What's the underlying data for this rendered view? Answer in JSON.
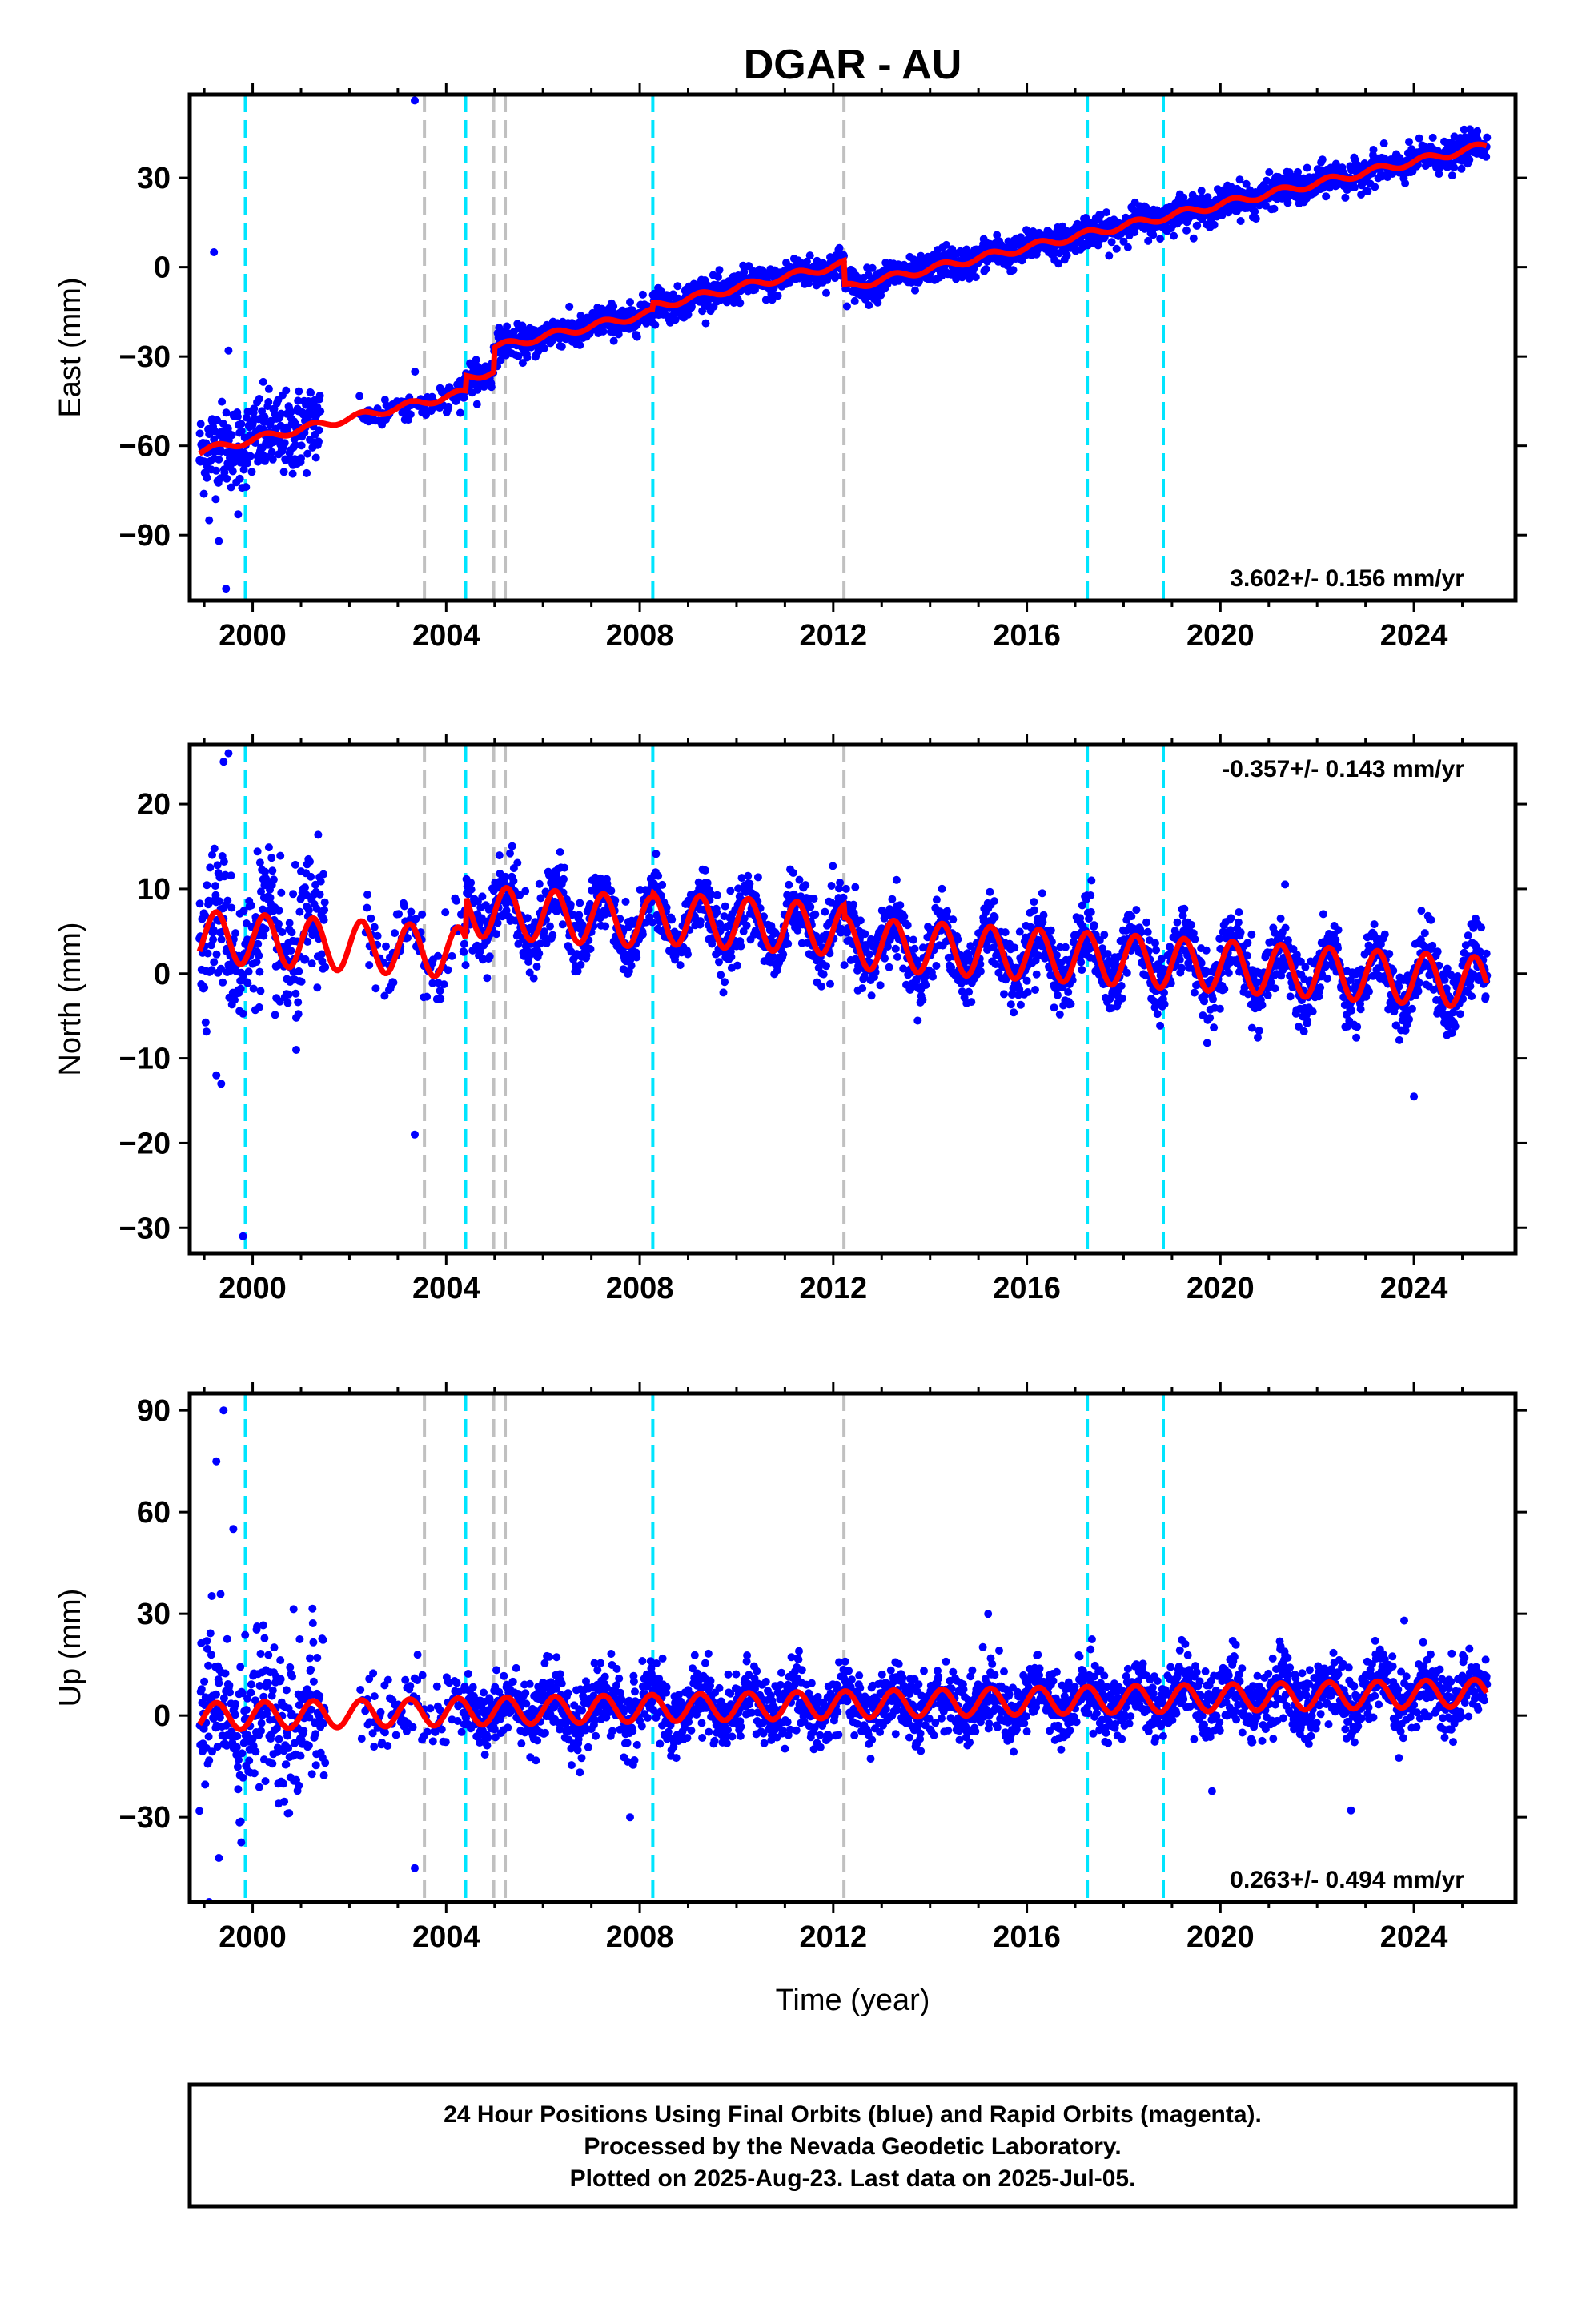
{
  "chart_data": {
    "type": "scatter",
    "title": "DGAR - AU",
    "xlabel": "Time (year)",
    "xlim": [
      1998.7,
      2026.1
    ],
    "xticks": [
      2000,
      2004,
      2008,
      2012,
      2016,
      2020,
      2024
    ],
    "xtick_labels": [
      "2000",
      "2004",
      "2008",
      "2012",
      "2016",
      "2020",
      "2024"
    ],
    "data_range": [
      1998.9,
      2025.51
    ],
    "colors": {
      "points": "#0000ff",
      "model": "#ff0000",
      "equipment_change": "#00e5ff",
      "event": "#c0c0c0"
    },
    "equipment_changes": [
      1999.85,
      2004.4,
      2008.27,
      2017.25,
      2018.82
    ],
    "events": [
      2003.55,
      2004.98,
      2005.22,
      2012.22
    ],
    "panels": [
      {
        "name": "east",
        "ylabel": "East (mm)",
        "ylim": [
          -112,
          58
        ],
        "yticks": [
          -90,
          -60,
          -30,
          0,
          30
        ],
        "ytick_labels": [
          "−90",
          "−60",
          "−30",
          "0",
          "30"
        ],
        "rate_text": "3.602+/- 0.156 mm/yr",
        "rate_position": "bottom-right",
        "rate": 3.602,
        "anchor": [
          2000,
          -58
        ],
        "offsets": [
          {
            "t": 2004.4,
            "dy": 5
          },
          {
            "t": 2004.98,
            "dy": 8
          },
          {
            "t": 2008.27,
            "dy": 2
          },
          {
            "t": 2012.22,
            "dy": -8
          }
        ],
        "annual_amp": 1.2,
        "noise": 2.6,
        "early_noise": 7,
        "outliers": [
          [
            1999.1,
            -85
          ],
          [
            1999.3,
            -92
          ],
          [
            1999.45,
            -108
          ],
          [
            1999.2,
            5
          ],
          [
            1999.7,
            -83
          ],
          [
            2003.35,
            56
          ],
          [
            1999.5,
            -28
          ]
        ],
        "gaps": [
          [
            2001.4,
            2002.2
          ]
        ]
      },
      {
        "name": "north",
        "ylabel": "North (mm)",
        "ylim": [
          -33,
          27
        ],
        "yticks": [
          -30,
          -20,
          -10,
          0,
          10,
          20
        ],
        "ytick_labels": [
          "−30",
          "−20",
          "−10",
          "0",
          "10",
          "20"
        ],
        "rate_text": "-0.357+/- 0.143 mm/yr",
        "rate_position": "top-right",
        "rate": -0.357,
        "anchor": [
          2000,
          4
        ],
        "offsets": [
          {
            "t": 2004.4,
            "dy": 5
          },
          {
            "t": 2008.27,
            "dy": 0.5
          },
          {
            "t": 2012.22,
            "dy": -1.5
          }
        ],
        "annual_amp": 3.0,
        "noise": 2.0,
        "early_noise": 4,
        "outliers": [
          [
            1999.25,
            -12
          ],
          [
            1999.35,
            -13
          ],
          [
            1999.4,
            25
          ],
          [
            1999.5,
            26
          ],
          [
            1999.8,
            -31
          ],
          [
            2003.35,
            -19
          ],
          [
            2000.9,
            -9
          ],
          [
            2024.0,
            -14.5
          ]
        ],
        "gaps": [
          [
            2001.5,
            2002.3
          ]
        ]
      },
      {
        "name": "up",
        "ylabel": "Up (mm)",
        "ylim": [
          -55,
          95
        ],
        "yticks": [
          -30,
          0,
          30,
          60,
          90
        ],
        "ytick_labels": [
          "−30",
          "0",
          "30",
          "60",
          "90"
        ],
        "rate_text": "0.263+/- 0.494 mm/yr",
        "rate_position": "bottom-right",
        "rate": 0.263,
        "anchor": [
          2000,
          0
        ],
        "offsets": [],
        "annual_amp": 4.0,
        "noise": 5.0,
        "early_noise": 12,
        "outliers": [
          [
            1999.4,
            90
          ],
          [
            1999.25,
            75
          ],
          [
            1999.6,
            55
          ],
          [
            1999.1,
            -55
          ],
          [
            1999.3,
            -42
          ],
          [
            2003.35,
            -45
          ],
          [
            2007.8,
            -30
          ],
          [
            2022.7,
            -28
          ],
          [
            2015.2,
            30
          ],
          [
            2023.8,
            28
          ]
        ],
        "gaps": [
          [
            2001.5,
            2002.2
          ]
        ]
      }
    ]
  },
  "footer": {
    "line1": "24 Hour Positions Using Final Orbits (blue) and Rapid Orbits (magenta).",
    "line2": "Processed by the Nevada Geodetic Laboratory.",
    "line3": "Plotted on 2025-Aug-23. Last data on 2025-Jul-05."
  }
}
